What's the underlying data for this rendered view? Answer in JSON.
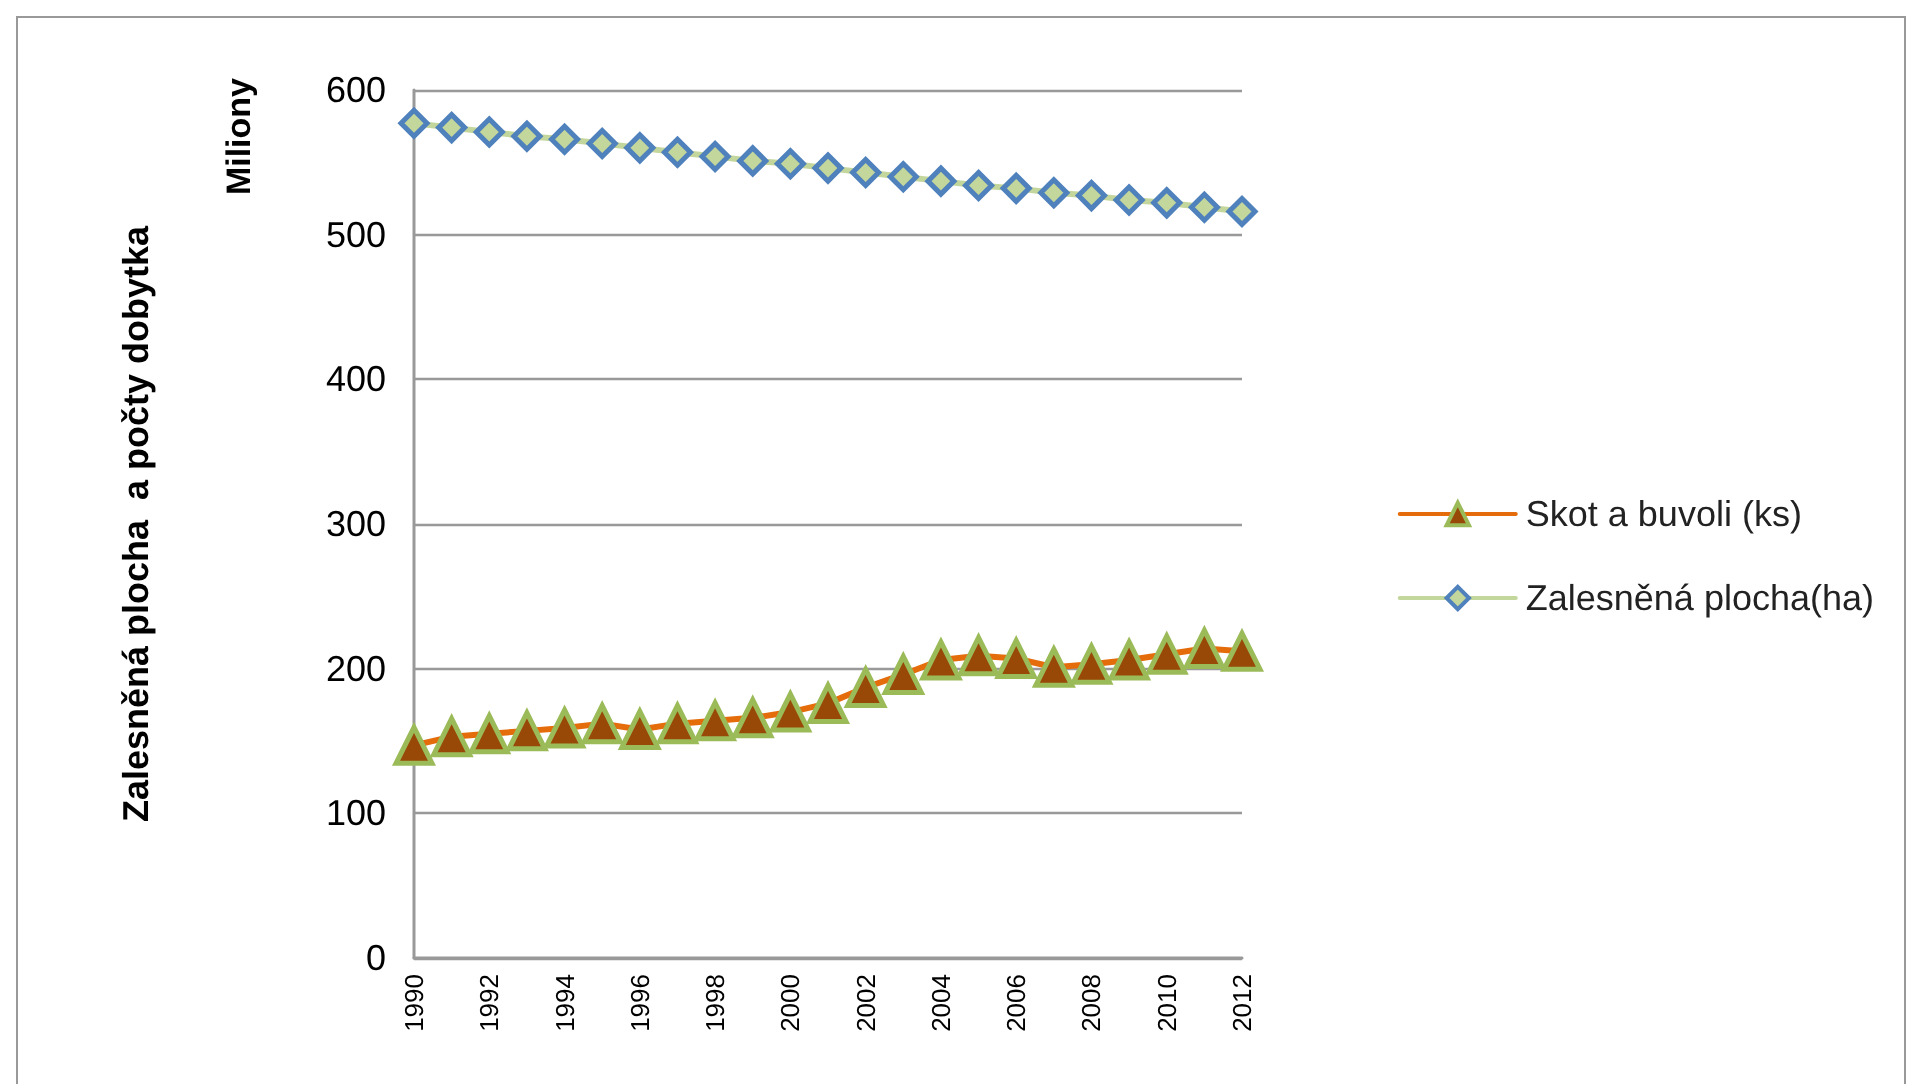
{
  "chart_data": {
    "type": "line",
    "ylabel": "Zalesněná plocha  a počty dobytka",
    "annotations": [
      "Miliony"
    ],
    "categories": [
      "1990",
      null,
      "1992",
      null,
      "1994",
      null,
      "1996",
      null,
      "1998",
      null,
      "2000",
      null,
      "2002",
      null,
      "2004",
      null,
      "2006",
      null,
      "2008",
      null,
      "2010",
      null,
      "2012"
    ],
    "series": [
      {
        "name": "Skot a buvoli (ks)",
        "color": "#e46c0a",
        "marker": "triangle",
        "values": [
          147,
          153,
          155,
          157,
          159,
          162,
          158,
          162,
          164,
          166,
          170,
          176,
          187,
          196,
          206,
          209,
          207,
          201,
          203,
          206,
          210,
          214,
          212
        ]
      },
      {
        "name": "Zalesněná plocha(ha)",
        "color": "#c3d69b",
        "marker": "diamond",
        "values": [
          577,
          574,
          571,
          568,
          566,
          563,
          560,
          557,
          554,
          551,
          549,
          546,
          543,
          540,
          537,
          534,
          532,
          529,
          527,
          524,
          522,
          519,
          516
        ]
      }
    ],
    "ylim": [
      0,
      600
    ],
    "yticks": [
      0,
      100,
      200,
      300,
      400,
      500,
      600
    ],
    "grid": "y",
    "legend": "right"
  }
}
